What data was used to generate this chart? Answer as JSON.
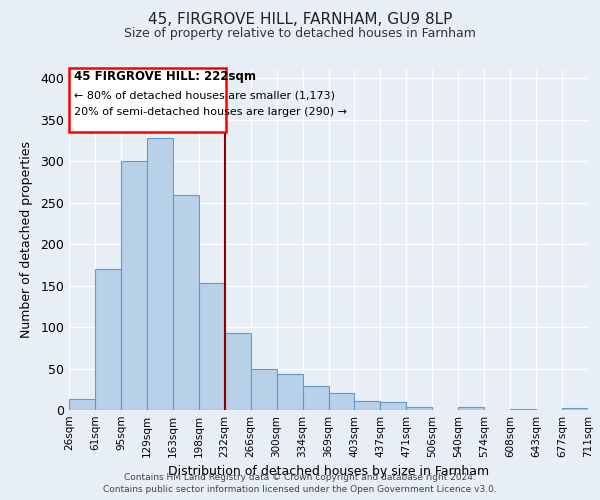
{
  "title": "45, FIRGROVE HILL, FARNHAM, GU9 8LP",
  "subtitle": "Size of property relative to detached houses in Farnham",
  "xlabel": "Distribution of detached houses by size in Farnham",
  "ylabel": "Number of detached properties",
  "bar_labels": [
    "26sqm",
    "61sqm",
    "95sqm",
    "129sqm",
    "163sqm",
    "198sqm",
    "232sqm",
    "266sqm",
    "300sqm",
    "334sqm",
    "369sqm",
    "403sqm",
    "437sqm",
    "471sqm",
    "506sqm",
    "540sqm",
    "574sqm",
    "608sqm",
    "643sqm",
    "677sqm",
    "711sqm"
  ],
  "bar_values": [
    13,
    170,
    300,
    328,
    259,
    153,
    93,
    50,
    43,
    29,
    21,
    11,
    10,
    4,
    0,
    4,
    0,
    1,
    0,
    3
  ],
  "bar_color": "#b8d0e8",
  "bar_edge_color": "#6699cc",
  "background_color": "#e8eef5",
  "grid_color": "#ffffff",
  "ylim": [
    0,
    410
  ],
  "yticks": [
    0,
    50,
    100,
    150,
    200,
    250,
    300,
    350,
    400
  ],
  "vline_color": "#8b0000",
  "annotation_title": "45 FIRGROVE HILL: 222sqm",
  "annotation_line1": "← 80% of detached houses are smaller (1,173)",
  "annotation_line2": "20% of semi-detached houses are larger (290) →",
  "footer_line1": "Contains HM Land Registry data © Crown copyright and database right 2024.",
  "footer_line2": "Contains public sector information licensed under the Open Government Licence v3.0."
}
